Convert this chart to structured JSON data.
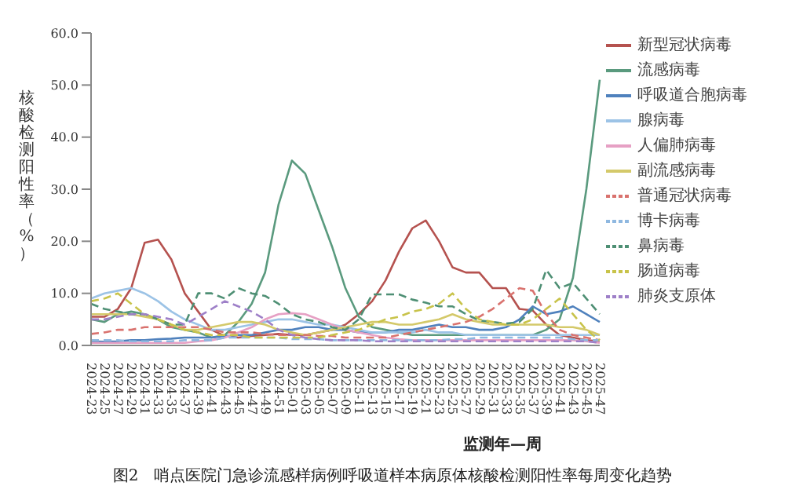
{
  "chart_data": {
    "type": "line",
    "title": "图2　哨点医院门急诊流感样病例呼吸道样本病原体核酸检测阳性率每周变化趋势",
    "xlabel": "监测年—周",
    "ylabel": "核酸检测阳性率（%）",
    "categories": [
      "2024-23",
      "2024-25",
      "2024-27",
      "2024-29",
      "2024-31",
      "2024-33",
      "2024-35",
      "2024-37",
      "2024-39",
      "2024-41",
      "2024-43",
      "2024-45",
      "2024-47",
      "2024-49",
      "2024-51",
      "2025-01",
      "2025-03",
      "2025-05",
      "2025-07",
      "2025-09",
      "2025-11",
      "2025-13",
      "2025-15",
      "2025-17",
      "2025-19",
      "2025-21",
      "2025-23",
      "2025-25",
      "2025-27",
      "2025-29",
      "2025-31",
      "2025-33",
      "2025-35",
      "2025-37",
      "2025-39",
      "2025-41",
      "2025-43",
      "2025-45",
      "2025-47"
    ],
    "ylim": [
      0,
      60
    ],
    "yticks": [
      {
        "value": 0,
        "label": "0.0"
      },
      {
        "value": 10,
        "label": "10.0"
      },
      {
        "value": 20,
        "label": "20.0"
      },
      {
        "value": 30,
        "label": "30.0"
      },
      {
        "value": 40,
        "label": "40.0"
      },
      {
        "value": 50,
        "label": "50.0"
      },
      {
        "value": 60,
        "label": "60.0"
      }
    ],
    "grid": false,
    "legend": "right",
    "marker": "none",
    "series": [
      {
        "name": "新型冠状病毒",
        "color": "#b5524f",
        "line_style": "solid",
        "values": [
          5.5,
          5.5,
          7,
          11,
          19.7,
          20.3,
          16.5,
          10,
          6.5,
          3,
          1.8,
          1.5,
          1.8,
          2,
          2.2,
          2,
          2,
          2.5,
          3,
          4,
          6,
          8.5,
          12.5,
          18,
          22.5,
          24,
          20,
          15,
          14,
          14,
          11,
          11,
          7,
          6.7,
          4,
          2,
          1.5,
          1,
          0.8
        ]
      },
      {
        "name": "流感病毒",
        "color": "#5a9a7e",
        "line_style": "solid",
        "values": [
          5,
          4.5,
          6,
          6.5,
          6,
          5,
          3.5,
          3,
          2.5,
          1.5,
          2,
          4.5,
          8,
          14,
          27,
          35.5,
          33,
          26,
          19,
          11,
          5.5,
          3.5,
          3,
          2.5,
          2,
          2,
          2,
          2,
          2,
          2,
          2,
          2,
          2,
          2,
          3,
          5,
          13,
          30,
          51
        ]
      },
      {
        "name": "呼吸道合胞病毒",
        "color": "#4f81bd",
        "line_style": "solid",
        "values": [
          0.8,
          0.7,
          0.8,
          1,
          1,
          1.2,
          1.3,
          1.5,
          1.5,
          1.5,
          1.8,
          2,
          2,
          2.5,
          3,
          3,
          3.5,
          3.5,
          3,
          3,
          2.5,
          2.5,
          2.5,
          3,
          3,
          3.5,
          4,
          3.5,
          3.5,
          3,
          3,
          3.5,
          5,
          7.5,
          6,
          6.5,
          7.5,
          6,
          4.5
        ]
      },
      {
        "name": "腺病毒",
        "color": "#9cc3e6",
        "line_style": "solid",
        "values": [
          9,
          10,
          10.5,
          11,
          10,
          8.5,
          6.5,
          5,
          4,
          3,
          3,
          3.5,
          4,
          4.5,
          5,
          5,
          4.5,
          4,
          4,
          3.5,
          3,
          2.5,
          2.5,
          2.5,
          2.5,
          3,
          2.5,
          2.5,
          2,
          2,
          2,
          2,
          2,
          2,
          2,
          2,
          2,
          2,
          2
        ]
      },
      {
        "name": "人偏肺病毒",
        "color": "#e6a0c4",
        "line_style": "solid",
        "values": [
          0.5,
          0.5,
          0.5,
          0.5,
          0.5,
          0.5,
          0.5,
          0.5,
          0.8,
          1,
          1.5,
          2.5,
          3.5,
          5,
          6,
          6.2,
          6,
          5,
          4,
          3,
          2.5,
          2,
          1.5,
          1.2,
          1,
          1,
          1,
          1,
          1,
          1,
          1,
          1,
          1,
          1,
          1,
          1,
          1,
          0.8,
          0.5
        ]
      },
      {
        "name": "副流感病毒",
        "color": "#d4c96a",
        "line_style": "solid",
        "values": [
          6,
          6,
          6,
          6,
          5.5,
          5,
          4,
          3,
          3,
          3.5,
          4,
          4.5,
          4.5,
          4,
          3,
          2.5,
          2,
          2.5,
          3,
          3.5,
          4,
          4.5,
          4.5,
          4,
          4,
          4.5,
          5,
          6,
          5,
          4.5,
          4,
          4,
          4,
          4,
          4,
          3.5,
          3.5,
          3,
          2
        ]
      },
      {
        "name": "普通冠状病毒",
        "color": "#d9726e",
        "line_style": "dashed",
        "values": [
          2.2,
          2.5,
          3,
          3,
          3.5,
          3.5,
          3.5,
          3.5,
          3.5,
          3,
          2.5,
          2.5,
          2.5,
          2.2,
          2,
          2,
          2,
          1.8,
          1.8,
          1.5,
          1.5,
          1.5,
          1.5,
          2,
          2.5,
          3,
          3.5,
          4,
          4.5,
          5.5,
          7,
          9,
          11,
          10.5,
          6,
          3,
          2,
          1.5,
          1
        ]
      },
      {
        "name": "博卡病毒",
        "color": "#8fb8e0",
        "line_style": "dashed",
        "values": [
          1,
          1,
          1,
          0.8,
          0.8,
          0.8,
          0.8,
          1,
          1,
          1,
          1.5,
          1.5,
          1.5,
          1.5,
          1.5,
          1.2,
          1.2,
          1.2,
          1,
          1,
          1,
          1,
          1,
          1,
          1,
          1,
          1,
          1.2,
          1.2,
          1.5,
          1.5,
          1.5,
          1.5,
          1.5,
          1.5,
          1.5,
          1.2,
          1,
          1
        ]
      },
      {
        "name": "鼻病毒",
        "color": "#4e8f74",
        "line_style": "dashed",
        "values": [
          8,
          7,
          6.5,
          6,
          6,
          5,
          4,
          4,
          10,
          10,
          9,
          11,
          10,
          9.5,
          8,
          6,
          5,
          4.5,
          3.5,
          3,
          5,
          9.8,
          9.8,
          9.8,
          8.8,
          8.2,
          7.5,
          7.5,
          6,
          4.8,
          4.5,
          4.2,
          4.5,
          7,
          14.5,
          11,
          12,
          9,
          6
        ]
      },
      {
        "name": "肠道病毒",
        "color": "#c8c34a",
        "line_style": "dashed",
        "values": [
          8.5,
          9,
          10,
          8,
          6,
          5,
          4,
          3,
          2.5,
          2,
          2,
          2,
          1.5,
          1.5,
          1.5,
          1.5,
          1.5,
          1.5,
          2,
          2.5,
          3,
          4,
          5,
          5.5,
          6.5,
          7,
          8,
          10,
          7,
          5,
          4.5,
          4,
          4,
          5,
          7,
          9,
          6,
          3,
          1
        ]
      },
      {
        "name": "肺炎支原体",
        "color": "#9e80c8",
        "line_style": "dashed",
        "values": [
          5,
          5,
          5.5,
          6,
          6,
          5.5,
          5,
          4,
          5.5,
          7,
          8.5,
          7.5,
          6.5,
          5,
          3,
          2,
          1.5,
          1.2,
          1,
          1,
          1,
          0.8,
          0.8,
          0.8,
          0.8,
          0.8,
          0.8,
          0.8,
          0.8,
          0.8,
          0.8,
          0.8,
          0.8,
          0.8,
          0.8,
          0.8,
          0.8,
          0.8,
          0.5
        ]
      }
    ]
  }
}
